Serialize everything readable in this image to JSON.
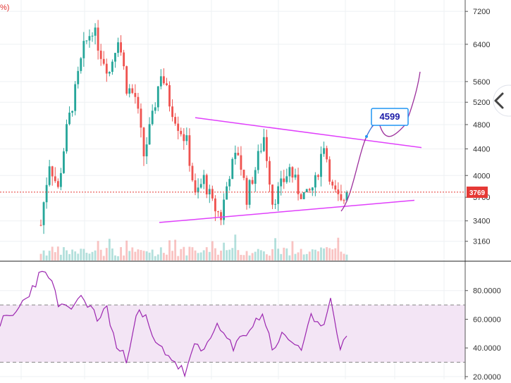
{
  "header": {
    "corner_text": "%)"
  },
  "colors": {
    "up": "#26a69a",
    "down": "#ef5350",
    "trendline": "#e040fb",
    "projection": "#9c2f9c",
    "rsi_line": "#9c27b0",
    "rsi_band": "#f3e5f5",
    "price_tag": "#e53935",
    "callout_border": "#2196f3"
  },
  "annotation": {
    "target_label": "4599"
  },
  "current_price": {
    "label": "3769",
    "value": 3769
  },
  "nav": {
    "scroll_icon": "chevron-left-icon"
  },
  "chart_data": [
    {
      "type": "candlestick",
      "panel": "price",
      "scale": "log",
      "ylim": [
        2950,
        7500
      ],
      "yticks": [
        7200,
        6400,
        5600,
        5200,
        4800,
        4400,
        4000,
        3700,
        3400,
        3160
      ],
      "ytick_labels": [
        "7200",
        "6400",
        "5600",
        "5200",
        "4800",
        "4400",
        "4000",
        "3700",
        "3400",
        "3160"
      ],
      "waypoints": [
        [
          0,
          3350
        ],
        [
          3,
          4200
        ],
        [
          6,
          3800
        ],
        [
          9,
          4700
        ],
        [
          12,
          5400
        ],
        [
          15,
          6300
        ],
        [
          18,
          6800
        ],
        [
          21,
          6200
        ],
        [
          24,
          5800
        ],
        [
          27,
          6600
        ],
        [
          30,
          5500
        ],
        [
          33,
          5300
        ],
        [
          36,
          4300
        ],
        [
          39,
          4900
        ],
        [
          42,
          5800
        ],
        [
          45,
          5200
        ],
        [
          48,
          4800
        ],
        [
          51,
          4500
        ],
        [
          54,
          3700
        ],
        [
          57,
          3950
        ],
        [
          60,
          3600
        ],
        [
          63,
          3450
        ],
        [
          66,
          4050
        ],
        [
          69,
          4350
        ],
        [
          72,
          3700
        ],
        [
          75,
          4100
        ],
        [
          78,
          4600
        ],
        [
          81,
          3650
        ],
        [
          84,
          3850
        ],
        [
          87,
          4100
        ],
        [
          90,
          3800
        ],
        [
          93,
          3700
        ],
        [
          96,
          3900
        ],
        [
          99,
          4500
        ],
        [
          102,
          3800
        ],
        [
          105,
          3600
        ],
        [
          107,
          3769
        ]
      ],
      "current_value": 3769,
      "trendlines": [
        {
          "name": "upper",
          "points": [
            [
              0.0,
              4920
            ],
            [
              1.0,
              4420
            ]
          ]
        },
        {
          "name": "lower",
          "points": [
            [
              0.0,
              3380
            ],
            [
              1.0,
              3660
            ]
          ]
        }
      ],
      "projection": {
        "target": 4599,
        "peak": 5800
      }
    },
    {
      "type": "bar",
      "panel": "volume",
      "ylim": [
        0,
        1
      ]
    },
    {
      "type": "line",
      "panel": "rsi",
      "ylim": [
        18,
        100
      ],
      "yticks": [
        80,
        60,
        40,
        20
      ],
      "ytick_labels": [
        "80.0000",
        "60.0000",
        "40.0000",
        "20.0000"
      ],
      "band": [
        30,
        70
      ],
      "waypoints": [
        [
          0,
          58
        ],
        [
          4,
          62
        ],
        [
          8,
          75
        ],
        [
          12,
          90
        ],
        [
          15,
          92
        ],
        [
          18,
          70
        ],
        [
          21,
          65
        ],
        [
          24,
          75
        ],
        [
          27,
          72
        ],
        [
          30,
          60
        ],
        [
          33,
          68
        ],
        [
          36,
          40
        ],
        [
          39,
          32
        ],
        [
          42,
          65
        ],
        [
          45,
          60
        ],
        [
          48,
          42
        ],
        [
          51,
          38
        ],
        [
          54,
          30
        ],
        [
          57,
          22
        ],
        [
          60,
          40
        ],
        [
          63,
          38
        ],
        [
          66,
          55
        ],
        [
          69,
          50
        ],
        [
          72,
          38
        ],
        [
          75,
          50
        ],
        [
          78,
          55
        ],
        [
          81,
          65
        ],
        [
          84,
          40
        ],
        [
          87,
          48
        ],
        [
          90,
          45
        ],
        [
          93,
          40
        ],
        [
          96,
          60
        ],
        [
          99,
          52
        ],
        [
          102,
          75
        ],
        [
          105,
          42
        ],
        [
          107,
          45
        ]
      ]
    }
  ]
}
